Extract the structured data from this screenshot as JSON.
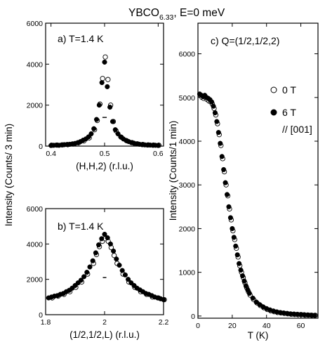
{
  "figure": {
    "title": "YBCO",
    "title_sub": "6.33",
    "title_rest": ", E=0 meV",
    "ylabel_left": "Intensity (Counts/ 3 min)",
    "ylabel_right": "Intensity (Counts/1 min)"
  },
  "chart_data": [
    {
      "type": "scatter",
      "panel": "a",
      "annotation": "a) T=1.4 K",
      "xlabel": "(H,H,2) (r.l.u.)",
      "ylabel": "Intensity (Counts/ 3 min)",
      "xlim": [
        0.39,
        0.61
      ],
      "ylim": [
        0,
        6000
      ],
      "xticks": [
        "0.4",
        "0.5",
        "0.6"
      ],
      "yticks": [
        "0",
        "2000",
        "4000",
        "6000"
      ],
      "resolution_bar": {
        "x0": 0.496,
        "x1": 0.504,
        "y": 1400
      },
      "series": [
        {
          "marker": "open",
          "x": [
            0.4,
            0.41,
            0.42,
            0.43,
            0.44,
            0.45,
            0.46,
            0.47,
            0.48,
            0.485,
            0.49,
            0.495,
            0.5,
            0.505,
            0.51,
            0.515,
            0.52,
            0.53,
            0.54,
            0.55,
            0.56,
            0.57,
            0.58,
            0.59,
            0.6
          ],
          "y": [
            40,
            50,
            60,
            70,
            100,
            160,
            250,
            400,
            800,
            1250,
            2050,
            3300,
            4350,
            3250,
            2000,
            1200,
            750,
            430,
            260,
            170,
            110,
            80,
            60,
            50,
            40
          ]
        },
        {
          "marker": "filled",
          "x": [
            0.4,
            0.405,
            0.41,
            0.415,
            0.42,
            0.425,
            0.43,
            0.435,
            0.44,
            0.445,
            0.45,
            0.455,
            0.46,
            0.465,
            0.47,
            0.475,
            0.48,
            0.485,
            0.49,
            0.495,
            0.5,
            0.505,
            0.51,
            0.515,
            0.52,
            0.525,
            0.53,
            0.535,
            0.54,
            0.545,
            0.55,
            0.555,
            0.56,
            0.565,
            0.57,
            0.575,
            0.58,
            0.585,
            0.59,
            0.595,
            0.6
          ],
          "y": [
            30,
            40,
            50,
            40,
            60,
            70,
            80,
            90,
            110,
            130,
            170,
            220,
            290,
            350,
            450,
            600,
            850,
            1300,
            2000,
            3100,
            4100,
            2900,
            1900,
            1200,
            800,
            600,
            450,
            350,
            280,
            220,
            170,
            140,
            110,
            90,
            70,
            60,
            50,
            50,
            40,
            40,
            30
          ]
        }
      ]
    },
    {
      "type": "scatter",
      "panel": "b",
      "annotation": "b) T=1.4 K",
      "xlabel": "(1/2,1/2,L) (r.l.u.)",
      "ylabel": "Intensity (Counts/ 3 min)",
      "xlim": [
        1.8,
        2.2
      ],
      "ylim": [
        0,
        6000
      ],
      "xticks": [
        "1.8",
        "2",
        "2.2"
      ],
      "yticks": [
        "0",
        "2000",
        "4000",
        "6000"
      ],
      "resolution_bar": {
        "x0": 1.994,
        "x1": 2.006,
        "y": 2100
      },
      "series": [
        {
          "marker": "open",
          "x": [
            1.82,
            1.84,
            1.86,
            1.88,
            1.9,
            1.92,
            1.94,
            1.96,
            1.97,
            1.98,
            1.99,
            2.0,
            2.01,
            2.02,
            2.03,
            2.04,
            2.06,
            2.08,
            2.1,
            2.12,
            2.14,
            2.16,
            2.18,
            2.2
          ],
          "y": [
            950,
            1050,
            1150,
            1300,
            1550,
            1850,
            2300,
            2900,
            3400,
            3850,
            4150,
            4300,
            4150,
            3800,
            3350,
            2900,
            2300,
            1850,
            1550,
            1300,
            1150,
            1000,
            950,
            850
          ]
        },
        {
          "marker": "filled",
          "x": [
            1.81,
            1.82,
            1.83,
            1.84,
            1.85,
            1.86,
            1.87,
            1.88,
            1.89,
            1.9,
            1.91,
            1.92,
            1.93,
            1.94,
            1.95,
            1.96,
            1.97,
            1.98,
            1.99,
            2.0,
            2.01,
            2.02,
            2.03,
            2.04,
            2.05,
            2.06,
            2.07,
            2.08,
            2.09,
            2.1,
            2.11,
            2.12,
            2.13,
            2.14,
            2.15,
            2.16,
            2.17,
            2.18,
            2.19,
            2.2
          ],
          "y": [
            950,
            1000,
            1050,
            1080,
            1150,
            1200,
            1300,
            1380,
            1500,
            1650,
            1800,
            1950,
            2150,
            2400,
            2700,
            3050,
            3500,
            3950,
            4300,
            4550,
            4350,
            4000,
            3600,
            3150,
            2800,
            2500,
            2250,
            2000,
            1800,
            1650,
            1500,
            1400,
            1300,
            1200,
            1150,
            1080,
            1000,
            950,
            900,
            850
          ]
        }
      ]
    },
    {
      "type": "scatter",
      "panel": "c",
      "annotation": "c) Q=(1/2,1/2,2)",
      "xlabel": "T (K)",
      "ylabel": "Intensity (Counts/1 min)",
      "xlim": [
        0,
        70
      ],
      "ylim": [
        -50,
        6700
      ],
      "xticks": [
        "0",
        "20",
        "40",
        "60"
      ],
      "yticks": [
        "0",
        "1000",
        "2000",
        "3000",
        "4000",
        "5000",
        "6000"
      ],
      "legend_placement": "right",
      "legend": [
        {
          "marker": "open",
          "label": "0 T"
        },
        {
          "marker": "filled",
          "label": "6 T"
        }
      ],
      "legend_note": "// [001]",
      "series": [
        {
          "marker": "open",
          "name": "0 T",
          "x": [
            1,
            2,
            3,
            4,
            5,
            6,
            7,
            8,
            9,
            10,
            11,
            12,
            13,
            14,
            15,
            16,
            17,
            18,
            19,
            20,
            21,
            22,
            23,
            24,
            25,
            26,
            27,
            28,
            29,
            30,
            32,
            34,
            36,
            38,
            40,
            42,
            44,
            46,
            48,
            50,
            52,
            54,
            56,
            58,
            60,
            62,
            64,
            66,
            68
          ],
          "y": [
            5050,
            5000,
            4980,
            5000,
            4950,
            4920,
            4900,
            4850,
            4750,
            4600,
            4400,
            4150,
            3900,
            3600,
            3300,
            3000,
            2750,
            2450,
            2200,
            1950,
            1750,
            1550,
            1350,
            1150,
            1000,
            880,
            760,
            650,
            560,
            480,
            380,
            300,
            240,
            190,
            150,
            120,
            100,
            80,
            70,
            60,
            50,
            40,
            35,
            30,
            30,
            20,
            20,
            15,
            15
          ]
        },
        {
          "marker": "filled",
          "name": "6 T",
          "x": [
            1,
            2,
            3,
            4,
            5,
            6,
            7,
            8,
            9,
            10,
            11,
            12,
            13,
            14,
            15,
            16,
            17,
            18,
            19,
            20,
            21,
            22,
            23,
            24,
            25,
            26,
            27,
            28,
            29,
            30,
            32,
            34,
            36,
            38,
            40,
            42,
            44,
            46,
            48,
            50,
            52,
            54,
            56,
            58,
            60,
            62,
            64,
            66,
            68
          ],
          "y": [
            5080,
            5050,
            5020,
            5050,
            5000,
            4980,
            4950,
            4900,
            4800,
            4650,
            4450,
            4200,
            3950,
            3650,
            3350,
            3050,
            2780,
            2500,
            2250,
            2000,
            1800,
            1600,
            1400,
            1200,
            1050,
            920,
            800,
            690,
            600,
            520,
            410,
            320,
            260,
            210,
            170,
            140,
            115,
            95,
            80,
            70,
            60,
            50,
            45,
            40,
            35,
            30,
            25,
            20,
            15
          ]
        }
      ]
    }
  ]
}
